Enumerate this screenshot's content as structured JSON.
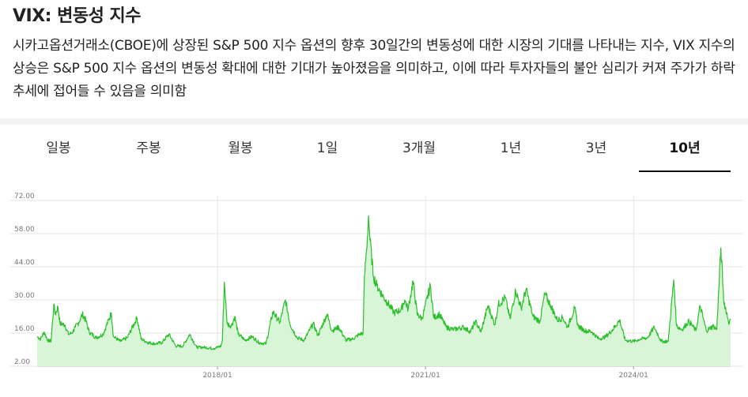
{
  "header": {
    "title": "VIX: 변동성 지수",
    "description": "시카고옵션거래소(CBOE)에 상장된 S&P 500 지수 옵션의 향후 30일간의 변동성에 대한 시장의 기대를 나타내는 지수, VIX 지수의 상승은 S&P 500 지수 옵션의 변동성 확대에 대한 기대가 높아졌음을 의미하고, 이에 따라 투자자들의 불안 심리가 커져 주가가 하락 추세에 접어들 수 있음을 의미함"
  },
  "tabs": [
    {
      "label": "일봉",
      "active": false
    },
    {
      "label": "주봉",
      "active": false
    },
    {
      "label": "월봉",
      "active": false
    },
    {
      "label": "1일",
      "active": false
    },
    {
      "label": "3개월",
      "active": false
    },
    {
      "label": "1년",
      "active": false
    },
    {
      "label": "3년",
      "active": false
    },
    {
      "label": "10년",
      "active": true
    }
  ],
  "colors": {
    "line": "#2bbf2b",
    "fill": "#d8f5d8",
    "grid": "#e6e6e6"
  },
  "chart_data": {
    "type": "area",
    "yticks": [
      "72.00",
      "58.00",
      "44.00",
      "30.00",
      "16.00",
      "2.00"
    ],
    "ylim": [
      2,
      72
    ],
    "xticks": [
      {
        "label": "2018/01",
        "t": 2018.0
      },
      {
        "label": "2021/01",
        "t": 2021.0
      },
      {
        "label": "2024/01",
        "t": 2024.0
      }
    ],
    "xlim": [
      2015.4,
      2025.4
    ],
    "grid": true,
    "series": [
      {
        "values": [
          [
            2015.4,
            14.5
          ],
          [
            2015.45,
            13.5
          ],
          [
            2015.5,
            16.5
          ],
          [
            2015.55,
            13.0
          ],
          [
            2015.6,
            12.5
          ],
          [
            2015.64,
            28.0
          ],
          [
            2015.66,
            24.0
          ],
          [
            2015.7,
            27.0
          ],
          [
            2015.73,
            20.0
          ],
          [
            2015.8,
            19.5
          ],
          [
            2015.85,
            15.5
          ],
          [
            2015.9,
            16.0
          ],
          [
            2015.95,
            18.5
          ],
          [
            2016.0,
            20.5
          ],
          [
            2016.05,
            24.0
          ],
          [
            2016.1,
            21.5
          ],
          [
            2016.15,
            16.5
          ],
          [
            2016.25,
            14.0
          ],
          [
            2016.35,
            15.5
          ],
          [
            2016.47,
            24.5
          ],
          [
            2016.5,
            14.5
          ],
          [
            2016.6,
            12.5
          ],
          [
            2016.7,
            14.0
          ],
          [
            2016.84,
            22.5
          ],
          [
            2016.9,
            13.5
          ],
          [
            2017.0,
            12.0
          ],
          [
            2017.1,
            11.5
          ],
          [
            2017.2,
            12.0
          ],
          [
            2017.3,
            15.5
          ],
          [
            2017.4,
            10.5
          ],
          [
            2017.5,
            10.5
          ],
          [
            2017.6,
            15.5
          ],
          [
            2017.7,
            10.0
          ],
          [
            2017.8,
            10.0
          ],
          [
            2017.95,
            9.5
          ],
          [
            2018.05,
            10.5
          ],
          [
            2018.07,
            13.0
          ],
          [
            2018.1,
            37.5
          ],
          [
            2018.14,
            20.0
          ],
          [
            2018.2,
            19.0
          ],
          [
            2018.25,
            23.0
          ],
          [
            2018.3,
            15.5
          ],
          [
            2018.4,
            13.0
          ],
          [
            2018.5,
            14.5
          ],
          [
            2018.6,
            12.0
          ],
          [
            2018.7,
            11.5
          ],
          [
            2018.8,
            25.0
          ],
          [
            2018.9,
            20.5
          ],
          [
            2018.98,
            30.0
          ],
          [
            2019.05,
            19.5
          ],
          [
            2019.15,
            14.0
          ],
          [
            2019.25,
            13.0
          ],
          [
            2019.38,
            20.0
          ],
          [
            2019.45,
            15.0
          ],
          [
            2019.58,
            24.0
          ],
          [
            2019.65,
            17.0
          ],
          [
            2019.75,
            18.5
          ],
          [
            2019.85,
            13.0
          ],
          [
            2019.95,
            13.5
          ],
          [
            2020.05,
            15.5
          ],
          [
            2020.1,
            16.0
          ],
          [
            2020.12,
            40.0
          ],
          [
            2020.15,
            51.0
          ],
          [
            2020.18,
            65.5
          ],
          [
            2020.2,
            55.0
          ],
          [
            2020.25,
            40.0
          ],
          [
            2020.3,
            36.0
          ],
          [
            2020.4,
            31.0
          ],
          [
            2020.45,
            29.0
          ],
          [
            2020.55,
            24.5
          ],
          [
            2020.65,
            26.0
          ],
          [
            2020.7,
            30.0
          ],
          [
            2020.75,
            26.0
          ],
          [
            2020.82,
            38.0
          ],
          [
            2020.88,
            24.0
          ],
          [
            2020.95,
            22.0
          ],
          [
            2021.07,
            36.0
          ],
          [
            2021.12,
            22.5
          ],
          [
            2021.2,
            24.0
          ],
          [
            2021.3,
            18.5
          ],
          [
            2021.4,
            17.5
          ],
          [
            2021.55,
            18.5
          ],
          [
            2021.65,
            16.5
          ],
          [
            2021.72,
            21.0
          ],
          [
            2021.8,
            16.5
          ],
          [
            2021.9,
            27.5
          ],
          [
            2022.0,
            19.5
          ],
          [
            2022.05,
            28.0
          ],
          [
            2022.15,
            31.0
          ],
          [
            2022.22,
            22.0
          ],
          [
            2022.3,
            34.0
          ],
          [
            2022.38,
            26.5
          ],
          [
            2022.45,
            34.5
          ],
          [
            2022.55,
            23.0
          ],
          [
            2022.65,
            21.0
          ],
          [
            2022.72,
            32.5
          ],
          [
            2022.8,
            28.0
          ],
          [
            2022.9,
            21.5
          ],
          [
            2022.98,
            22.5
          ],
          [
            2023.05,
            18.5
          ],
          [
            2023.15,
            26.5
          ],
          [
            2023.2,
            19.0
          ],
          [
            2023.3,
            17.0
          ],
          [
            2023.4,
            16.5
          ],
          [
            2023.5,
            13.5
          ],
          [
            2023.6,
            14.5
          ],
          [
            2023.7,
            17.5
          ],
          [
            2023.8,
            21.5
          ],
          [
            2023.88,
            13.0
          ],
          [
            2024.0,
            12.5
          ],
          [
            2024.1,
            13.5
          ],
          [
            2024.2,
            14.0
          ],
          [
            2024.3,
            18.5
          ],
          [
            2024.4,
            12.5
          ],
          [
            2024.5,
            12.5
          ],
          [
            2024.58,
            38.5
          ],
          [
            2024.62,
            19.0
          ],
          [
            2024.7,
            17.5
          ],
          [
            2024.8,
            21.0
          ],
          [
            2024.9,
            17.0
          ],
          [
            2024.96,
            27.5
          ],
          [
            2025.05,
            17.0
          ],
          [
            2025.15,
            19.0
          ],
          [
            2025.2,
            17.5
          ],
          [
            2025.26,
            52.0
          ],
          [
            2025.3,
            30.0
          ],
          [
            2025.38,
            20.0
          ],
          [
            2025.4,
            22.0
          ]
        ]
      }
    ]
  }
}
